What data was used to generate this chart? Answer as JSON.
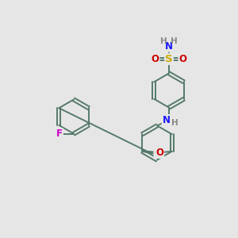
{
  "background_color": "#e6e6e6",
  "bond_color": "#557a6a",
  "bond_width": 1.4,
  "atom_colors": {
    "N": "#1a1aff",
    "O": "#cc0000",
    "S": "#ccaa00",
    "F": "#cc00cc",
    "Cl": "#339933",
    "H": "#888888"
  },
  "font_size": 8.5,
  "fig_width": 3.0,
  "fig_height": 3.0,
  "dpi": 100
}
